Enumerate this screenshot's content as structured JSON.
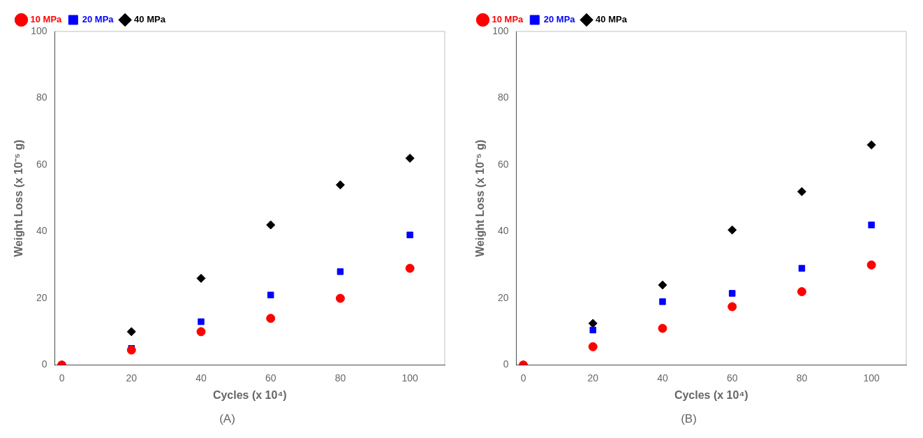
{
  "chart_data": [
    {
      "type": "scatter",
      "title": "(A)",
      "xlabel": "Cycles (x 10⁴)",
      "ylabel": "Weight Loss (x 10⁻⁵ g)",
      "x": [
        0,
        20,
        40,
        60,
        80,
        100
      ],
      "series": [
        {
          "name": "10 MPa",
          "color": "#ff0000",
          "marker": "circle",
          "values": [
            0,
            4.5,
            10,
            14,
            20,
            29
          ]
        },
        {
          "name": "20 MPa",
          "color": "#0000ff",
          "marker": "square",
          "values": [
            0,
            5,
            13,
            21,
            28,
            39
          ]
        },
        {
          "name": "40 MPa",
          "color": "#000000",
          "marker": "diamond",
          "values": [
            0,
            10,
            26,
            42,
            54,
            62
          ]
        }
      ],
      "xlim": [
        -2,
        110
      ],
      "ylim": [
        0,
        100
      ],
      "xticks": [
        0,
        20,
        40,
        60,
        80,
        100
      ],
      "yticks": [
        0,
        20,
        40,
        60,
        80,
        100
      ],
      "grid": false,
      "legend": "upper left"
    },
    {
      "type": "scatter",
      "title": "(B)",
      "xlabel": "Cycles (x 10⁴)",
      "ylabel": "Weight Loss (x 10⁻⁵ g)",
      "x": [
        0,
        20,
        40,
        60,
        80,
        100
      ],
      "series": [
        {
          "name": "10 MPa",
          "color": "#ff0000",
          "marker": "circle",
          "values": [
            0,
            5.5,
            11,
            17.5,
            22,
            30
          ]
        },
        {
          "name": "20 MPa",
          "color": "#0000ff",
          "marker": "square",
          "values": [
            0,
            10.5,
            19,
            21.5,
            29,
            42
          ]
        },
        {
          "name": "40 MPa",
          "color": "#000000",
          "marker": "diamond",
          "values": [
            0,
            12.5,
            24,
            40.5,
            52,
            66
          ]
        }
      ],
      "xlim": [
        -2,
        110
      ],
      "ylim": [
        0,
        100
      ],
      "xticks": [
        0,
        20,
        40,
        60,
        80,
        100
      ],
      "yticks": [
        0,
        20,
        40,
        60,
        80,
        100
      ],
      "grid": false,
      "legend": "upper left"
    }
  ]
}
